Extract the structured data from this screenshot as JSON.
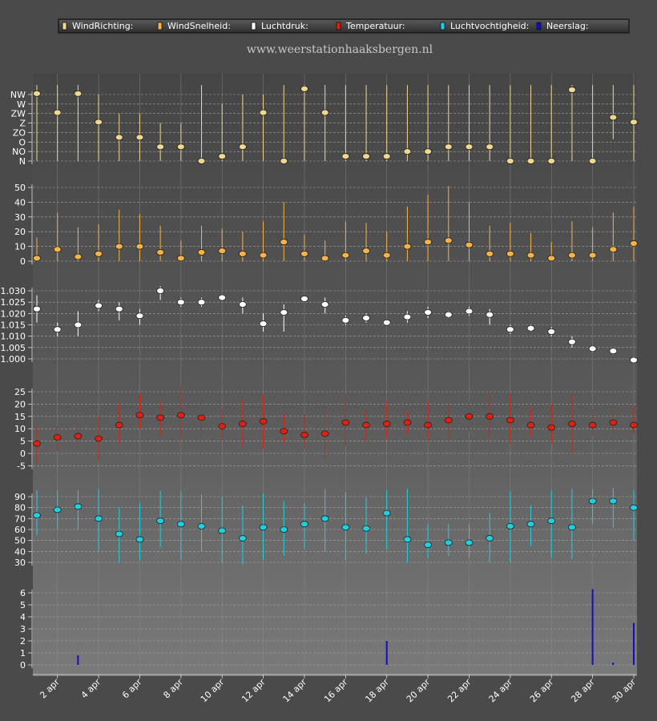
{
  "site": {
    "title": "www.weerstationhaaksbergen.nl"
  },
  "legend": [
    {
      "label": "WindRichting:",
      "color": "#f0d890"
    },
    {
      "label": "WindSnelheid:",
      "color": "#f6b34a"
    },
    {
      "label": "Luchtdruk:",
      "color": "#ffffff"
    },
    {
      "label": "Temperatuur:",
      "color": "#e02010"
    },
    {
      "label": "Luchtvochtigheid:",
      "color": "#20d0e0"
    },
    {
      "label": "Neerslag:",
      "color": "#1010c0"
    }
  ],
  "chart_data": [
    {
      "type": "scatter",
      "name": "WindRichting",
      "color": "#f0d890",
      "x": [
        "1 apr",
        "2 apr",
        "3 apr",
        "4 apr",
        "5 apr",
        "6 apr",
        "7 apr",
        "8 apr",
        "9 apr",
        "10 apr",
        "11 apr",
        "12 apr",
        "13 apr",
        "14 apr",
        "15 apr",
        "16 apr",
        "17 apr",
        "18 apr",
        "19 apr",
        "20 apr",
        "21 apr",
        "22 apr",
        "23 apr",
        "24 apr",
        "25 apr",
        "26 apr",
        "27 apr",
        "28 apr",
        "29 apr",
        "30 apr"
      ],
      "values": [
        7.1,
        5.1,
        7.1,
        4.1,
        2.5,
        2.5,
        1.5,
        1.5,
        0,
        0.5,
        1.5,
        5.1,
        0,
        7.6,
        5.1,
        0.5,
        0.5,
        0.5,
        1,
        1,
        1.5,
        1.5,
        1.5,
        0,
        0,
        0,
        7.5,
        0,
        4.6,
        4.1
      ],
      "ranges": [
        [
          0,
          8
        ],
        [
          0,
          8
        ],
        [
          0,
          8
        ],
        [
          0,
          7
        ],
        [
          0,
          5
        ],
        [
          0,
          5
        ],
        [
          0,
          4
        ],
        [
          0,
          4
        ],
        [
          0,
          8
        ],
        [
          0,
          6
        ],
        [
          0,
          7
        ],
        [
          0,
          7
        ],
        [
          0,
          8
        ],
        [
          0,
          8
        ],
        [
          0,
          8
        ],
        [
          0,
          8
        ],
        [
          0,
          8
        ],
        [
          0,
          8
        ],
        [
          0,
          8
        ],
        [
          0,
          8
        ],
        [
          0,
          8
        ],
        [
          0,
          8
        ],
        [
          0,
          8
        ],
        [
          0,
          8
        ],
        [
          0,
          8
        ],
        [
          0,
          8
        ],
        [
          0,
          8
        ],
        [
          0,
          8
        ],
        [
          2.3,
          8
        ],
        [
          0,
          8
        ]
      ],
      "ytick_labels": [
        "N",
        "NO",
        "O",
        "ZO",
        "Z",
        "ZW",
        "W",
        "NW"
      ],
      "ylim": [
        0,
        8
      ]
    },
    {
      "type": "scatter",
      "name": "WindSnelheid",
      "color": "#f6b34a",
      "x": [
        "1 apr",
        "2 apr",
        "3 apr",
        "4 apr",
        "5 apr",
        "6 apr",
        "7 apr",
        "8 apr",
        "9 apr",
        "10 apr",
        "11 apr",
        "12 apr",
        "13 apr",
        "14 apr",
        "15 apr",
        "16 apr",
        "17 apr",
        "18 apr",
        "19 apr",
        "20 apr",
        "21 apr",
        "22 apr",
        "23 apr",
        "24 apr",
        "25 apr",
        "26 apr",
        "27 apr",
        "28 apr",
        "29 apr",
        "30 apr"
      ],
      "values": [
        2,
        8,
        3,
        5,
        10,
        10,
        6,
        2,
        6,
        7,
        5,
        4,
        13,
        5,
        2,
        4,
        7,
        4,
        10,
        13,
        14,
        11,
        5,
        5,
        4,
        2,
        4,
        4,
        8,
        12
      ],
      "ranges": [
        [
          0,
          16
        ],
        [
          0,
          33
        ],
        [
          0,
          23
        ],
        [
          0,
          25
        ],
        [
          0,
          35
        ],
        [
          0,
          32
        ],
        [
          0,
          24
        ],
        [
          0,
          14
        ],
        [
          0,
          24
        ],
        [
          0,
          22
        ],
        [
          0,
          20
        ],
        [
          0,
          27
        ],
        [
          0,
          40
        ],
        [
          0,
          18
        ],
        [
          0,
          14
        ],
        [
          0,
          27
        ],
        [
          0,
          26
        ],
        [
          0,
          20
        ],
        [
          0,
          37
        ],
        [
          0,
          45
        ],
        [
          0,
          51
        ],
        [
          0,
          40
        ],
        [
          0,
          24
        ],
        [
          0,
          26
        ],
        [
          0,
          19
        ],
        [
          0,
          13
        ],
        [
          0,
          27
        ],
        [
          0,
          23
        ],
        [
          0,
          33
        ],
        [
          0,
          37
        ]
      ],
      "yticks": [
        0,
        10,
        20,
        30,
        40,
        50
      ],
      "ylim": [
        0,
        50
      ]
    },
    {
      "type": "scatter",
      "name": "Luchtdruk",
      "color": "#ffffff",
      "x": [
        "1 apr",
        "2 apr",
        "3 apr",
        "4 apr",
        "5 apr",
        "6 apr",
        "7 apr",
        "8 apr",
        "9 apr",
        "10 apr",
        "11 apr",
        "12 apr",
        "13 apr",
        "14 apr",
        "15 apr",
        "16 apr",
        "17 apr",
        "18 apr",
        "19 apr",
        "20 apr",
        "21 apr",
        "22 apr",
        "23 apr",
        "24 apr",
        "25 apr",
        "26 apr",
        "27 apr",
        "28 apr",
        "29 apr",
        "30 apr"
      ],
      "values": [
        1.022,
        1.013,
        1.015,
        1.0235,
        1.022,
        1.019,
        1.03,
        1.025,
        1.025,
        1.027,
        1.024,
        1.0155,
        1.0205,
        1.0265,
        1.024,
        1.017,
        1.018,
        1.016,
        1.0185,
        1.0205,
        1.0195,
        1.021,
        1.0195,
        1.013,
        1.0135,
        1.012,
        1.0075,
        1.0045,
        1.0035,
        0.9995
      ],
      "ranges": [
        [
          1.016,
          1.028
        ],
        [
          1.01,
          1.016
        ],
        [
          1.01,
          1.021
        ],
        [
          1.021,
          1.026
        ],
        [
          1.017,
          1.025
        ],
        [
          1.015,
          1.022
        ],
        [
          1.026,
          1.032
        ],
        [
          1.023,
          1.027
        ],
        [
          1.023,
          1.027
        ],
        [
          1.026,
          1.028
        ],
        [
          1.02,
          1.027
        ],
        [
          1.012,
          1.02
        ],
        [
          1.012,
          1.024
        ],
        [
          1.025,
          1.027
        ],
        [
          1.02,
          1.027
        ],
        [
          1.015,
          1.019
        ],
        [
          1.016,
          1.02
        ],
        [
          1.015,
          1.017
        ],
        [
          1.016,
          1.021
        ],
        [
          1.018,
          1.023
        ],
        [
          1.018,
          1.021
        ],
        [
          1.019,
          1.023
        ],
        [
          1.015,
          1.022
        ],
        [
          1.011,
          1.015
        ],
        [
          1.012,
          1.015
        ],
        [
          1.01,
          1.014
        ],
        [
          1.005,
          1.01
        ],
        [
          1.003,
          1.006
        ],
        [
          1.002,
          1.005
        ],
        [
          0.999,
          1.001
        ]
      ],
      "ytick_labels": [
        "1.000",
        "1.005",
        "1.010",
        "1.015",
        "1.020",
        "1.025",
        "1.030"
      ],
      "yticks": [
        1.0,
        1.005,
        1.01,
        1.015,
        1.02,
        1.025,
        1.03
      ],
      "ylim": [
        0.999,
        1.034
      ]
    },
    {
      "type": "scatter",
      "name": "Temperatuur",
      "color": "#e02010",
      "x": [
        "1 apr",
        "2 apr",
        "3 apr",
        "4 apr",
        "5 apr",
        "6 apr",
        "7 apr",
        "8 apr",
        "9 apr",
        "10 apr",
        "11 apr",
        "12 apr",
        "13 apr",
        "14 apr",
        "15 apr",
        "16 apr",
        "17 apr",
        "18 apr",
        "19 apr",
        "20 apr",
        "21 apr",
        "22 apr",
        "23 apr",
        "24 apr",
        "25 apr",
        "26 apr",
        "27 apr",
        "28 apr",
        "29 apr",
        "30 apr"
      ],
      "values": [
        4,
        6.5,
        7,
        6,
        11.5,
        15.5,
        14.5,
        15.5,
        14.5,
        11,
        12,
        13,
        9,
        7.5,
        8,
        12.5,
        11.5,
        12,
        12.5,
        11.5,
        13.5,
        15,
        15,
        13.5,
        11.5,
        10.5,
        12,
        11.5,
        12.5,
        11.5
      ],
      "ranges": [
        [
          -4,
          11
        ],
        [
          1,
          11
        ],
        [
          2,
          12
        ],
        [
          -3,
          15
        ],
        [
          4,
          20
        ],
        [
          10,
          24
        ],
        [
          7,
          21
        ],
        [
          6,
          27
        ],
        [
          6,
          22
        ],
        [
          5,
          18
        ],
        [
          3,
          22
        ],
        [
          2,
          24
        ],
        [
          4,
          16
        ],
        [
          2,
          16
        ],
        [
          -2,
          18
        ],
        [
          3,
          24
        ],
        [
          5,
          17
        ],
        [
          6,
          21
        ],
        [
          8,
          17
        ],
        [
          5,
          21
        ],
        [
          6,
          20
        ],
        [
          9,
          21
        ],
        [
          6,
          24
        ],
        [
          4,
          24
        ],
        [
          7,
          18
        ],
        [
          4,
          20
        ],
        [
          0,
          24
        ],
        [
          7,
          18
        ],
        [
          8,
          17
        ],
        [
          8,
          19
        ]
      ],
      "yticks": [
        -5,
        0,
        5,
        10,
        15,
        20,
        25
      ],
      "ylim": [
        -7,
        28
      ]
    },
    {
      "type": "scatter",
      "name": "Luchtvochtigheid",
      "color": "#20d0e0",
      "x": [
        "1 apr",
        "2 apr",
        "3 apr",
        "4 apr",
        "5 apr",
        "6 apr",
        "7 apr",
        "8 apr",
        "9 apr",
        "10 apr",
        "11 apr",
        "12 apr",
        "13 apr",
        "14 apr",
        "15 apr",
        "16 apr",
        "17 apr",
        "18 apr",
        "19 apr",
        "20 apr",
        "21 apr",
        "22 apr",
        "23 apr",
        "24 apr",
        "25 apr",
        "26 apr",
        "27 apr",
        "28 apr",
        "29 apr",
        "30 apr"
      ],
      "values": [
        73,
        78,
        81,
        70,
        56,
        51,
        68,
        65,
        63,
        59,
        52,
        62,
        60,
        65,
        70,
        62,
        61,
        75,
        51,
        46,
        48,
        48,
        52,
        63,
        65,
        68,
        62,
        86,
        86,
        80
      ],
      "ranges": [
        [
          55,
          96
        ],
        [
          60,
          96
        ],
        [
          60,
          96
        ],
        [
          40,
          97
        ],
        [
          30,
          80
        ],
        [
          32,
          84
        ],
        [
          44,
          95
        ],
        [
          32,
          95
        ],
        [
          40,
          92
        ],
        [
          30,
          90
        ],
        [
          28,
          82
        ],
        [
          32,
          93
        ],
        [
          36,
          86
        ],
        [
          42,
          84
        ],
        [
          40,
          97
        ],
        [
          32,
          94
        ],
        [
          38,
          89
        ],
        [
          42,
          96
        ],
        [
          30,
          97
        ],
        [
          34,
          65
        ],
        [
          36,
          65
        ],
        [
          34,
          65
        ],
        [
          30,
          75
        ],
        [
          30,
          95
        ],
        [
          45,
          82
        ],
        [
          34,
          96
        ],
        [
          33,
          97
        ],
        [
          65,
          97
        ],
        [
          62,
          98
        ],
        [
          50,
          96
        ]
      ],
      "yticks": [
        30,
        40,
        50,
        60,
        70,
        80,
        90
      ],
      "ylim": [
        20,
        97
      ]
    },
    {
      "type": "bar",
      "name": "Neerslag",
      "color": "#1010c0",
      "x": [
        "1 apr",
        "2 apr",
        "3 apr",
        "4 apr",
        "5 apr",
        "6 apr",
        "7 apr",
        "8 apr",
        "9 apr",
        "10 apr",
        "11 apr",
        "12 apr",
        "13 apr",
        "14 apr",
        "15 apr",
        "16 apr",
        "17 apr",
        "18 apr",
        "19 apr",
        "20 apr",
        "21 apr",
        "22 apr",
        "23 apr",
        "24 apr",
        "25 apr",
        "26 apr",
        "27 apr",
        "28 apr",
        "29 apr",
        "30 apr"
      ],
      "values": [
        0,
        0,
        0.8,
        0,
        0,
        0,
        0,
        0,
        0,
        0,
        0,
        0,
        0,
        0,
        0,
        0,
        0,
        2,
        0,
        0,
        0,
        0,
        0,
        0,
        0,
        0,
        0,
        6.3,
        0.2,
        3.5
      ],
      "yticks": [
        0,
        1,
        2,
        3,
        4,
        5,
        6
      ],
      "ylim": [
        -0.7,
        6.4
      ]
    }
  ],
  "xaxis": {
    "tick_labels": [
      "2 apr",
      "4 apr",
      "6 apr",
      "8 apr",
      "10 apr",
      "12 apr",
      "14 apr",
      "16 apr",
      "18 apr",
      "20 apr",
      "22 apr",
      "24 apr",
      "26 apr",
      "28 apr",
      "30 apr"
    ]
  }
}
